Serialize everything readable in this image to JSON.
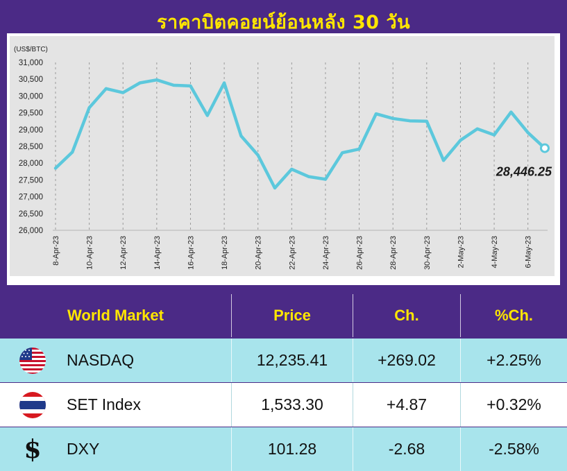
{
  "title": "ราคาบิตคอยน์ย้อนหลัง 30 วัน",
  "chart_data": {
    "type": "line",
    "ylabel": "(US$/BTC)",
    "ylim": [
      26000,
      31000
    ],
    "y_ticks": [
      "26,000",
      "26,500",
      "27,000",
      "27,500",
      "28,000",
      "28,500",
      "29,000",
      "29,500",
      "30,000",
      "30,500",
      "31,000"
    ],
    "x_tick_labels": [
      "8-Apr-23",
      "10-Apr-23",
      "12-Apr-23",
      "14-Apr-23",
      "16-Apr-23",
      "18-Apr-23",
      "20-Apr-23",
      "22-Apr-23",
      "24-Apr-23",
      "26-Apr-23",
      "28-Apr-23",
      "30-Apr-23",
      "2-May-23",
      "4-May-23",
      "6-May-23"
    ],
    "x": [
      "8-Apr-23",
      "9-Apr-23",
      "10-Apr-23",
      "11-Apr-23",
      "12-Apr-23",
      "13-Apr-23",
      "14-Apr-23",
      "15-Apr-23",
      "16-Apr-23",
      "17-Apr-23",
      "18-Apr-23",
      "19-Apr-23",
      "20-Apr-23",
      "21-Apr-23",
      "22-Apr-23",
      "23-Apr-23",
      "24-Apr-23",
      "25-Apr-23",
      "26-Apr-23",
      "27-Apr-23",
      "28-Apr-23",
      "29-Apr-23",
      "30-Apr-23",
      "1-May-23",
      "2-May-23",
      "3-May-23",
      "4-May-23",
      "5-May-23",
      "6-May-23",
      "7-May-23"
    ],
    "series": [
      {
        "values": [
          27850,
          28330,
          29650,
          30220,
          30100,
          30390,
          30480,
          30320,
          30300,
          29420,
          30390,
          28810,
          28240,
          27260,
          27820,
          27600,
          27520,
          28310,
          28420,
          29470,
          29330,
          29260,
          29250,
          28080,
          28680,
          29020,
          28840,
          29520,
          28910,
          28446.25
        ]
      }
    ],
    "last_value_label": "28,446.25",
    "grid": true,
    "line_color": "#5cc8dc",
    "panel_color": "#e4e4e4"
  },
  "table": {
    "header": {
      "market": "World Market",
      "price": "Price",
      "ch": "Ch.",
      "pct": "%Ch."
    },
    "rows": [
      {
        "icon": "us-flag-icon",
        "name": "NASDAQ",
        "price": "12,235.41",
        "ch": "+269.02",
        "pct": "+2.25%"
      },
      {
        "icon": "thai-flag-icon",
        "name": "SET Index",
        "price": "1,533.30",
        "ch": "+4.87",
        "pct": "+0.32%"
      },
      {
        "icon": "dollar-sign-icon",
        "name": "DXY",
        "price": "101.28",
        "ch": "-2.68",
        "pct": "-2.58%"
      }
    ],
    "colors": {
      "header_bg": "#4b2a86",
      "row_teal": "#a8e4ec",
      "row_white": "#ffffff",
      "header_text": "#ffe600"
    }
  }
}
